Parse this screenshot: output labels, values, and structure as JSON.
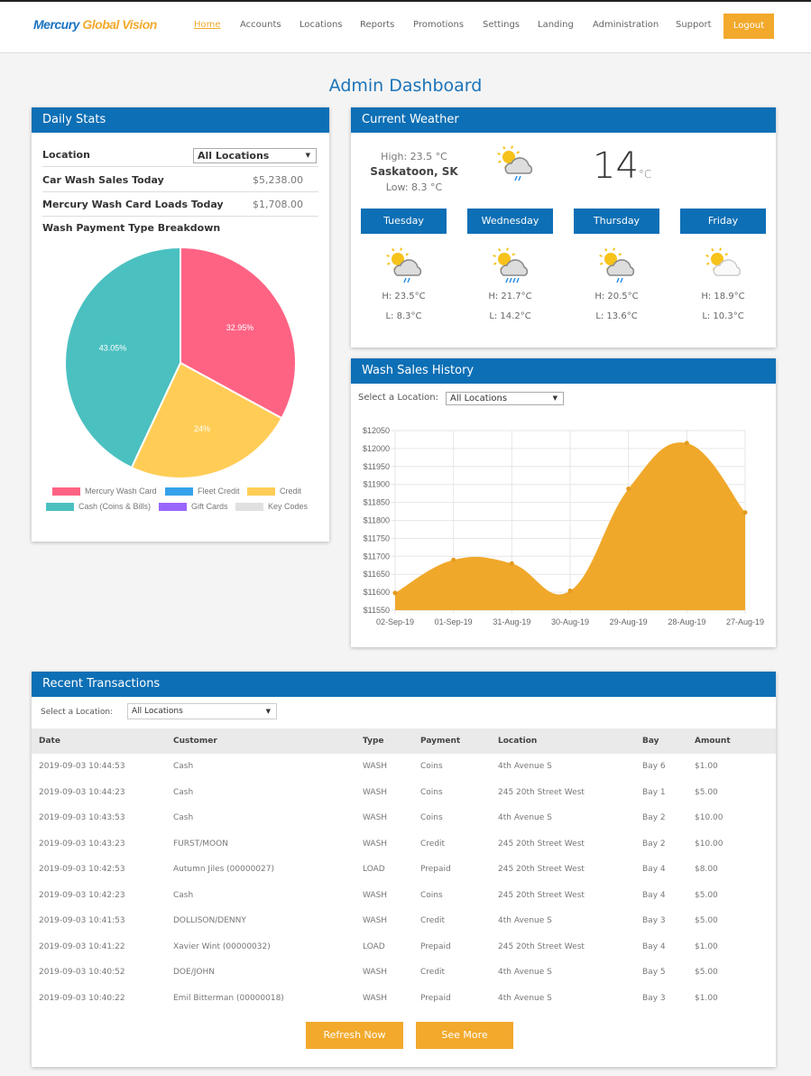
{
  "header": {
    "logo_part1": "Mercury",
    "logo_part2": "Global Vision",
    "nav": [
      "Home",
      "Accounts",
      "Locations",
      "Reports",
      "Promotions",
      "Settings",
      "Landing",
      "Administration",
      "Support"
    ],
    "logout": "Logout"
  },
  "page_title": "Admin Dashboard",
  "daily": {
    "title": "Daily Stats",
    "location_label": "Location",
    "location_value": "All Locations",
    "car_wash_label": "Car Wash Sales Today",
    "car_wash_value": "$5,238.00",
    "card_loads_label": "Mercury Wash Card Loads Today",
    "card_loads_value": "$1,708.00",
    "breakdown_label": "Wash Payment Type Breakdown"
  },
  "weather": {
    "title": "Current Weather",
    "high": "High: 23.5 °C",
    "city": "Saskatoon, SK",
    "low": "Low: 8.3 °C",
    "temp": "14",
    "unit": "°C",
    "icon": "partly-cloudy-rain-icon",
    "days": [
      {
        "name": "Tuesday",
        "icon": "rain",
        "high": "H: 23.5°C",
        "low": "L: 8.3°C"
      },
      {
        "name": "Wednesday",
        "icon": "heavy-rain",
        "high": "H: 21.7°C",
        "low": "L: 14.2°C"
      },
      {
        "name": "Thursday",
        "icon": "rain",
        "high": "H: 20.5°C",
        "low": "L: 13.6°C"
      },
      {
        "name": "Friday",
        "icon": "partly-cloudy",
        "high": "H: 18.9°C",
        "low": "L: 10.3°C"
      }
    ]
  },
  "sales": {
    "title": "Wash Sales History",
    "select_label": "Select a Location:",
    "select_value": "All Locations"
  },
  "chart_data": [
    {
      "type": "pie",
      "labels": [
        "Mercury Wash Card",
        "Fleet Credit",
        "Credit",
        "Cash (Coins & Bills)",
        "Gift Cards",
        "Key Codes"
      ],
      "values": [
        32.95,
        0,
        24,
        43.05,
        0,
        0
      ],
      "data_labels": [
        "32.95%",
        "",
        "24%",
        "43.05%",
        "",
        ""
      ],
      "colors": [
        "#ff6384",
        "#36a2eb",
        "#ffcd56",
        "#4bc0c0",
        "#9966ff",
        "#e0e0e0"
      ],
      "legend": "bottom"
    },
    {
      "type": "area",
      "categories": [
        "02-Sep-19",
        "01-Sep-19",
        "31-Aug-19",
        "30-Aug-19",
        "29-Aug-19",
        "28-Aug-19",
        "27-Aug-19"
      ],
      "values": [
        11598,
        11690,
        11680,
        11604,
        11888,
        12015,
        11822
      ],
      "ylim": [
        11550,
        12050
      ],
      "yticks": [
        "$12050",
        "$12000",
        "$11950",
        "$11900",
        "$11850",
        "$11800",
        "$11750",
        "$11700",
        "$11650",
        "$11600",
        "$11550"
      ],
      "color": "#f0a82a",
      "grid": true
    }
  ],
  "transactions": {
    "title": "Recent Transactions",
    "select_label": "Select a Location:",
    "select_value": "All Locations",
    "columns": [
      "Date",
      "Customer",
      "Type",
      "Payment",
      "Location",
      "Bay",
      "Amount"
    ],
    "rows": [
      [
        "2019-09-03 10:44:53",
        "Cash",
        "WASH",
        "Coins",
        "4th Avenue S",
        "Bay 6",
        "$1.00"
      ],
      [
        "2019-09-03 10:44:23",
        "Cash",
        "WASH",
        "Coins",
        "245 20th Street West",
        "Bay 1",
        "$5.00"
      ],
      [
        "2019-09-03 10:43:53",
        "Cash",
        "WASH",
        "Coins",
        "4th Avenue S",
        "Bay 2",
        "$10.00"
      ],
      [
        "2019-09-03 10:43:23",
        "FURST/MOON",
        "WASH",
        "Credit",
        "245 20th Street West",
        "Bay 2",
        "$10.00"
      ],
      [
        "2019-09-03 10:42:53",
        " Autumn Jiles (00000027)",
        "LOAD",
        "Prepaid",
        "245 20th Street West",
        "Bay 4",
        "$8.00"
      ],
      [
        "2019-09-03 10:42:23",
        "Cash",
        "WASH",
        "Coins",
        "245 20th Street West",
        "Bay 4",
        "$5.00"
      ],
      [
        "2019-09-03 10:41:53",
        "DOLLISON/DENNY",
        "WASH",
        "Credit",
        "4th Avenue S",
        "Bay 3",
        "$5.00"
      ],
      [
        "2019-09-03 10:41:22",
        " Xavier Wint (00000032)",
        "LOAD",
        "Prepaid",
        "245 20th Street West",
        "Bay 4",
        "$1.00"
      ],
      [
        "2019-09-03 10:40:52",
        "DOE/JOHN",
        "WASH",
        "Credit",
        "4th Avenue S",
        "Bay 5",
        "$5.00"
      ],
      [
        "2019-09-03 10:40:22",
        " Emil Bitterman (00000018)",
        "WASH",
        "Prepaid",
        "4th Avenue S",
        "Bay 3",
        "$1.00"
      ]
    ],
    "refresh": "Refresh Now",
    "see_more": "See More"
  }
}
